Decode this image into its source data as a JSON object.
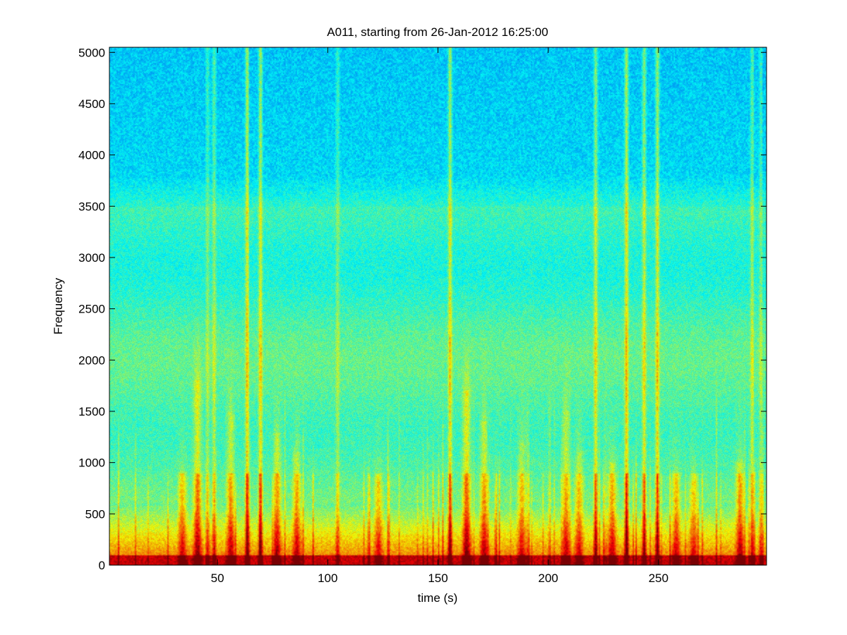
{
  "chart_data": {
    "type": "heatmap",
    "title": "A011, starting from 26-Jan-2012 16:25:00",
    "xlabel": "time (s)",
    "ylabel": "Frequency",
    "xlim": [
      1,
      299
    ],
    "ylim": [
      0,
      5050
    ],
    "xticks": [
      50,
      100,
      150,
      200,
      250
    ],
    "yticks": [
      0,
      500,
      1000,
      1500,
      2000,
      2500,
      3000,
      3500,
      4000,
      4500,
      5000
    ],
    "colormap": "jet",
    "grid": false,
    "background_level": 0.33,
    "broadband_events": [
      {
        "time": 63.5,
        "top_frequency": 5050,
        "strength": 0.95
      },
      {
        "time": 69.5,
        "top_frequency": 5050,
        "strength": 0.9
      },
      {
        "time": 155.5,
        "top_frequency": 5050,
        "strength": 0.9
      },
      {
        "time": 221.5,
        "top_frequency": 5050,
        "strength": 0.8
      },
      {
        "time": 235.5,
        "top_frequency": 5050,
        "strength": 1.0
      },
      {
        "time": 243.5,
        "top_frequency": 5050,
        "strength": 0.8
      },
      {
        "time": 249.5,
        "top_frequency": 5050,
        "strength": 0.9
      },
      {
        "time": 48.5,
        "top_frequency": 5050,
        "strength": 0.55
      },
      {
        "time": 45.5,
        "top_frequency": 5050,
        "strength": 0.45
      },
      {
        "time": 104.5,
        "top_frequency": 5050,
        "strength": 0.45
      },
      {
        "time": 292.5,
        "top_frequency": 5050,
        "strength": 0.6
      },
      {
        "time": 296.5,
        "top_frequency": 5050,
        "strength": 0.45
      },
      {
        "time": 41,
        "top_frequency": 1800,
        "strength": 0.7
      },
      {
        "time": 56,
        "top_frequency": 1500,
        "strength": 0.6
      },
      {
        "time": 77,
        "top_frequency": 1300,
        "strength": 0.6
      },
      {
        "time": 86,
        "top_frequency": 1100,
        "strength": 0.55
      },
      {
        "time": 163,
        "top_frequency": 1700,
        "strength": 0.75
      },
      {
        "time": 171,
        "top_frequency": 1400,
        "strength": 0.6
      },
      {
        "time": 188,
        "top_frequency": 1200,
        "strength": 0.5
      },
      {
        "time": 208,
        "top_frequency": 1500,
        "strength": 0.55
      },
      {
        "time": 214,
        "top_frequency": 1100,
        "strength": 0.5
      },
      {
        "time": 229,
        "top_frequency": 1000,
        "strength": 0.55
      },
      {
        "time": 258,
        "top_frequency": 900,
        "strength": 0.5
      },
      {
        "time": 266,
        "top_frequency": 800,
        "strength": 0.45
      },
      {
        "time": 287,
        "top_frequency": 1000,
        "strength": 0.6
      },
      {
        "time": 34,
        "top_frequency": 900,
        "strength": 0.5
      },
      {
        "time": 123,
        "top_frequency": 800,
        "strength": 0.45
      }
    ]
  }
}
